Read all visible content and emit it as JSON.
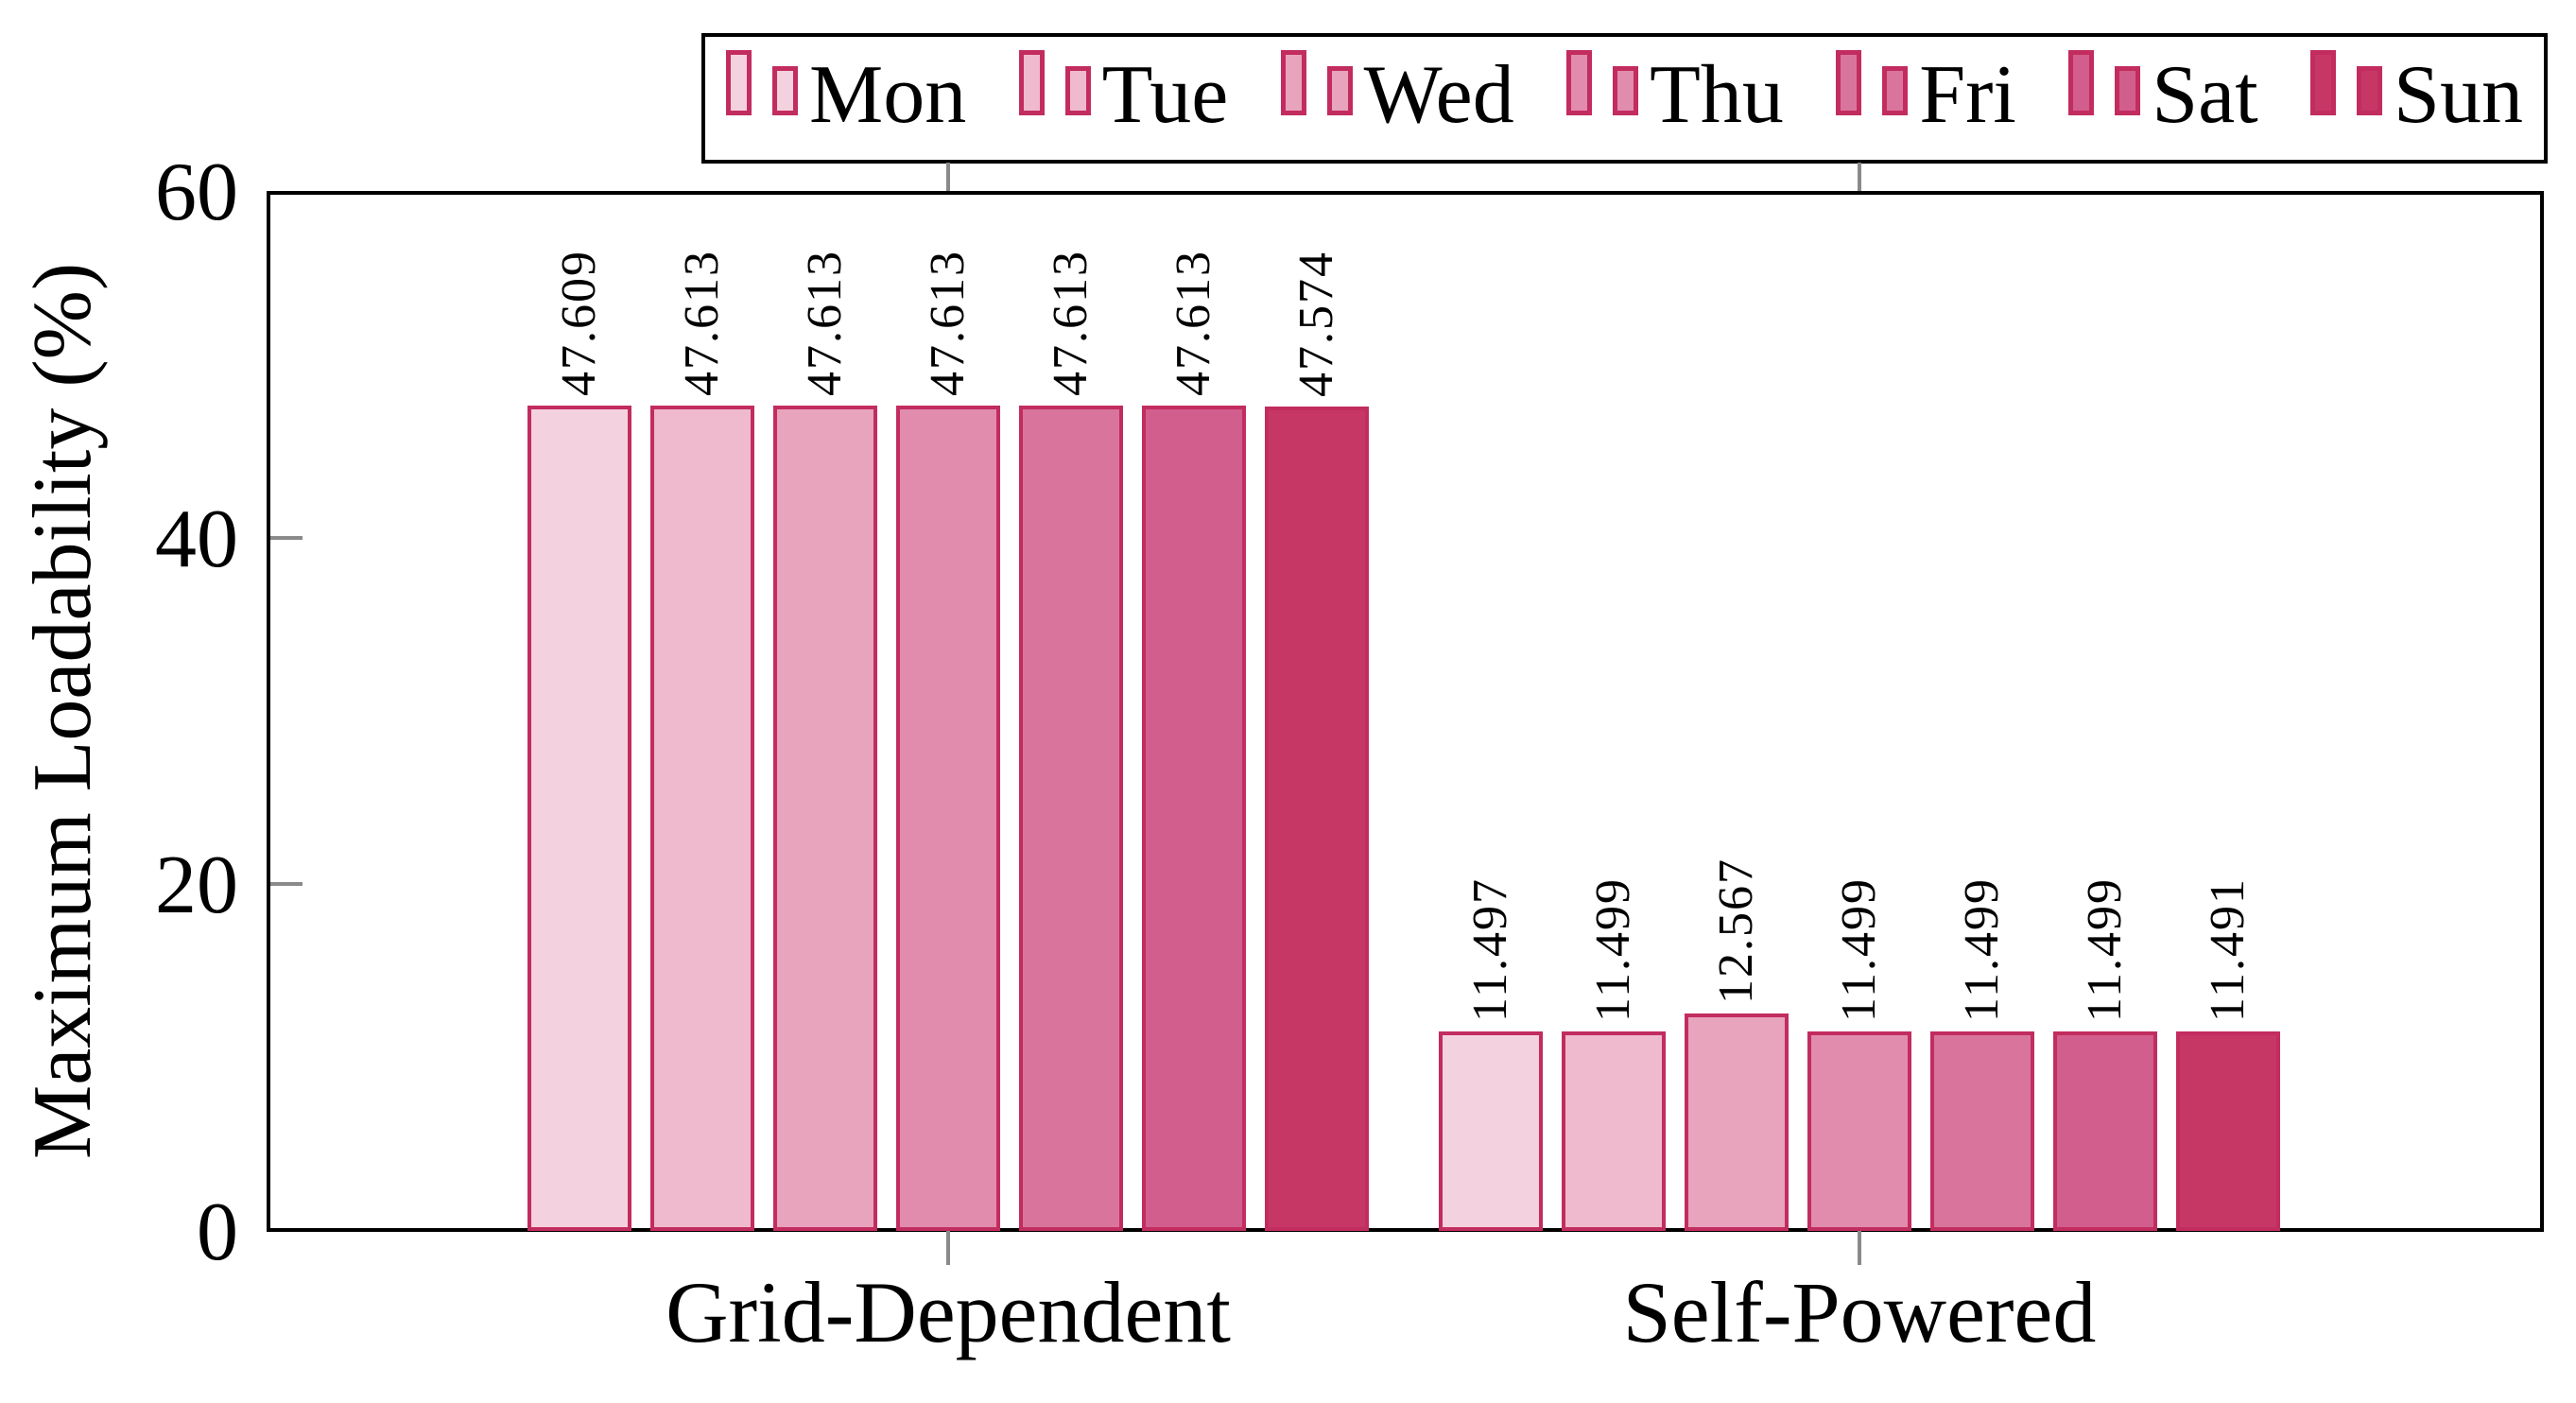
{
  "chart_data": {
    "type": "bar",
    "title": "",
    "xlabel": "",
    "ylabel": "Maximum Loadability (%)",
    "ylim": [
      0,
      60
    ],
    "yticks": [
      0,
      20,
      40,
      60
    ],
    "ytick_labels": [
      "0",
      "20",
      "40",
      "60"
    ],
    "grid": false,
    "legend_position": "top",
    "categories": [
      "Grid-Dependent",
      "Self-Powered"
    ],
    "series": [
      {
        "name": "Mon",
        "values": [
          47.609,
          11.497
        ],
        "labels": [
          "47.609",
          "11.497"
        ],
        "fill": "#f4d1de"
      },
      {
        "name": "Tue",
        "values": [
          47.613,
          11.499
        ],
        "labels": [
          "47.613",
          "11.499"
        ],
        "fill": "#efbacd"
      },
      {
        "name": "Wed",
        "values": [
          47.613,
          12.567
        ],
        "labels": [
          "47.613",
          "12.567"
        ],
        "fill": "#e8a3bd"
      },
      {
        "name": "Thu",
        "values": [
          47.613,
          11.499
        ],
        "labels": [
          "47.613",
          "11.499"
        ],
        "fill": "#e18cad"
      },
      {
        "name": "Fri",
        "values": [
          47.613,
          11.499
        ],
        "labels": [
          "47.613",
          "11.499"
        ],
        "fill": "#d9759d"
      },
      {
        "name": "Sat",
        "values": [
          47.613,
          11.499
        ],
        "labels": [
          "47.613",
          "11.499"
        ],
        "fill": "#d25e8d"
      },
      {
        "name": "Sun",
        "values": [
          47.574,
          11.491
        ],
        "labels": [
          "47.574",
          "11.491"
        ],
        "fill": "#c73766"
      }
    ],
    "bar_border_color": "#c22c5f",
    "axis_color": "#000000",
    "tick_color": "#8a8a8a",
    "value_labels_rotated": true
  }
}
